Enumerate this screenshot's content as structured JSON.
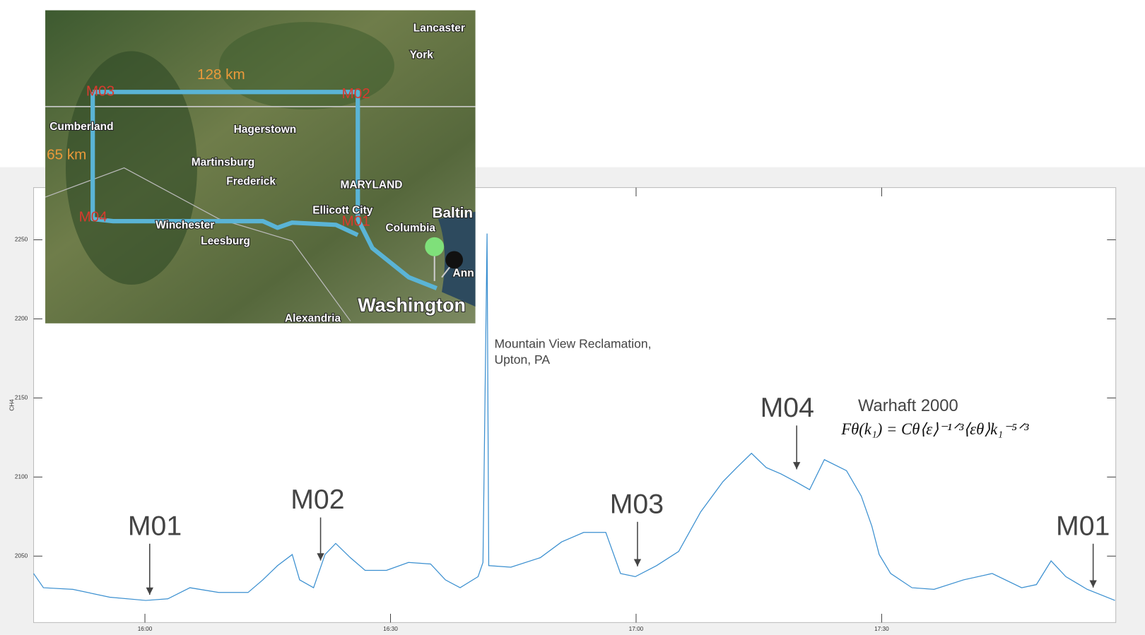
{
  "chart_data": {
    "type": "line",
    "ylabel": "CH4",
    "x": [
      946.4,
      947.6,
      951.2,
      955.7,
      960.1,
      962.8,
      965.5,
      969.0,
      972.6,
      974.4,
      976.2,
      978.0,
      978.9,
      980.6,
      982.0,
      983.3,
      985.1,
      986.9,
      989.5,
      992.2,
      994.9,
      996.7,
      998.5,
      1000.7,
      1001.3,
      1001.8,
      1002.0,
      1004.7,
      1008.3,
      1010.9,
      1013.6,
      1016.3,
      1018.1,
      1019.9,
      1022.5,
      1025.2,
      1027.9,
      1030.6,
      1032.3,
      1034.1,
      1035.9,
      1037.7,
      1039.5,
      1041.2,
      1043.0,
      1045.7,
      1047.5,
      1048.8,
      1049.7,
      1051.1,
      1053.7,
      1056.4,
      1060.0,
      1063.5,
      1067.1,
      1068.9,
      1070.7,
      1072.5,
      1075.1,
      1078.5
    ],
    "series": [
      {
        "name": "CH4",
        "color": "#3a8fd0",
        "values": [
          2039,
          2030,
          2029,
          2024,
          2022,
          2023,
          2030,
          2027,
          2027,
          2035,
          2044,
          2051,
          2035,
          2030,
          2051,
          2058,
          2049,
          2041,
          2041,
          2046,
          2045,
          2035,
          2030,
          2037,
          2046,
          2254,
          2044,
          2043,
          2049,
          2059,
          2065,
          2065,
          2039,
          2037,
          2044,
          2053,
          2078,
          2097,
          2106,
          2115,
          2106,
          2102,
          2097,
          2092,
          2111,
          2104,
          2088,
          2069,
          2051,
          2039,
          2030,
          2029,
          2035,
          2039,
          2030,
          2032,
          2047,
          2037,
          2029,
          2022
        ]
      }
    ],
    "xlim": [
      946.4,
      1078.6
    ],
    "ylim": [
      2008,
      2283
    ],
    "xticks": [
      {
        "value": 960,
        "label": "16:00"
      },
      {
        "value": 990,
        "label": "16:30"
      },
      {
        "value": 1020,
        "label": "17:00"
      },
      {
        "value": 1050,
        "label": "17:30"
      }
    ],
    "yticks": [
      2050,
      2100,
      2150,
      2200,
      2250
    ],
    "grid": false,
    "annotations": [
      "M01",
      "M02",
      "M03",
      "M04",
      "M01"
    ],
    "note": {
      "lines": [
        "Mountain View Reclamation,",
        "Upton, PA"
      ]
    },
    "reference": "Warhaft 2000",
    "formula": "Fθ(k₁)  =  Cθ⟨ε⟩⁻¹ᐟ³⟨εθ⟩k₁⁻⁵ᐟ³"
  },
  "map": {
    "labels": [
      "Lancaster",
      "York",
      "128 km",
      "M03",
      "M02",
      "Cumberland",
      "Hagerstown",
      "65 km",
      "Martinsburg",
      "Frederick",
      "MARYLAND",
      "Ellicott City",
      "Baltin",
      "M04",
      "Winchester",
      "M01",
      "Columbia",
      "Leesburg",
      "Ann",
      "Washington",
      "Alexandria"
    ]
  }
}
